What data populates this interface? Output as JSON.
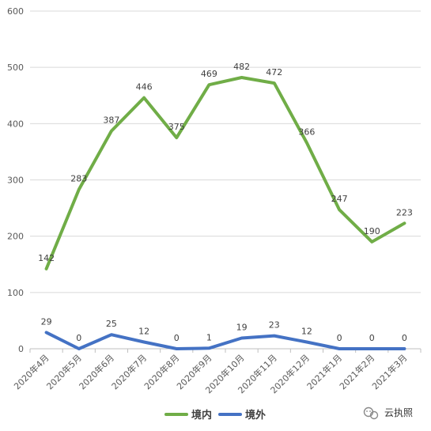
{
  "chart_data": {
    "type": "line",
    "categories": [
      "2020年4月",
      "2020年5月",
      "2020年6月",
      "2020年7月",
      "2020年8月",
      "2020年9月",
      "2020年10月",
      "2020年11月",
      "2020年12月",
      "2021年1月",
      "2021年2月",
      "2021年3月"
    ],
    "series": [
      {
        "name": "境内",
        "color": "#70AD47",
        "values": [
          142,
          283,
          387,
          446,
          375,
          469,
          482,
          472,
          366,
          247,
          190,
          223
        ]
      },
      {
        "name": "境外",
        "color": "#4472C4",
        "values": [
          29,
          0,
          25,
          12,
          0,
          1,
          19,
          23,
          12,
          0,
          0,
          0
        ]
      }
    ],
    "yticks": [
      0,
      100,
      200,
      300,
      400,
      500,
      600
    ],
    "ylim": [
      0,
      600
    ],
    "grid": true,
    "legend": "bottom-center"
  },
  "watermark": {
    "text": "云执照",
    "icon": "wechat-icon"
  }
}
